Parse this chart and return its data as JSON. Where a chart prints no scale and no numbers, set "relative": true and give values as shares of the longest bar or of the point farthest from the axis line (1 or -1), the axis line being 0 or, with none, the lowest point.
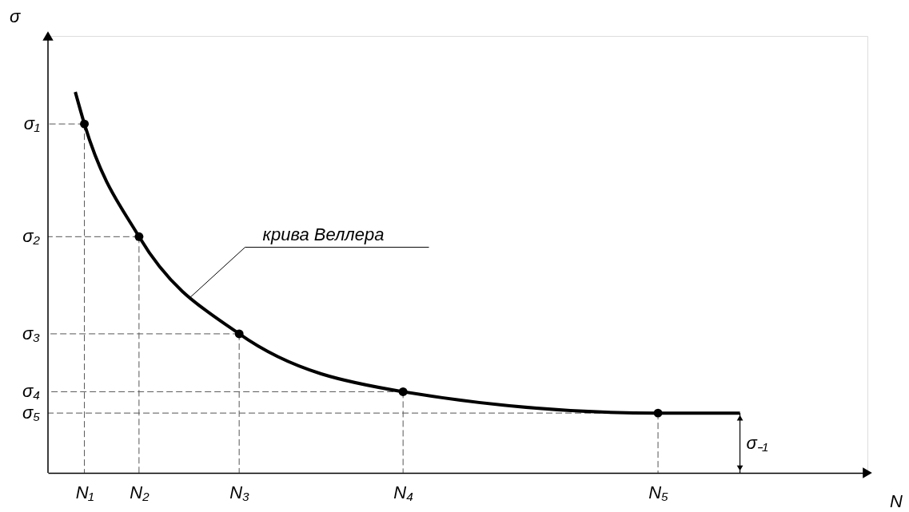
{
  "chart_data": {
    "type": "line",
    "xlabel": "N",
    "ylabel": "σ",
    "relative": true,
    "grid": true,
    "categories": [
      null,
      null,
      null,
      null,
      "N₁",
      null,
      null,
      null,
      null,
      null,
      "N₂",
      null,
      null,
      null,
      null,
      null,
      null,
      null,
      null,
      null,
      null,
      "N₃",
      null,
      null,
      null,
      null,
      null,
      null,
      null,
      null,
      null,
      null,
      null,
      null,
      null,
      null,
      null,
      null,
      null,
      "N₄",
      null,
      null,
      null,
      null,
      null,
      null,
      null,
      null,
      null,
      null,
      null,
      null,
      null,
      null,
      null,
      null,
      null,
      null,
      null,
      null,
      null,
      null,
      null,
      null,
      null,
      null,
      null,
      "N₅",
      null,
      null,
      null,
      null,
      null,
      null,
      null,
      null,
      null,
      null,
      null,
      null,
      null,
      null,
      null,
      null,
      null,
      null,
      null,
      null,
      null,
      null,
      null
    ],
    "series": [
      {
        "values": [
          null,
          null,
          null,
          1,
          0.916,
          null,
          null,
          null,
          null,
          null,
          0.62,
          null,
          null,
          null,
          null,
          null,
          null,
          null,
          null,
          null,
          null,
          0.365,
          null,
          null,
          null,
          null,
          null,
          null,
          null,
          null,
          null,
          null,
          null,
          null,
          null,
          null,
          null,
          null,
          null,
          0.213,
          null,
          null,
          null,
          null,
          null,
          null,
          null,
          null,
          null,
          null,
          null,
          null,
          null,
          null,
          null,
          null,
          null,
          null,
          null,
          null,
          null,
          null,
          null,
          null,
          null,
          null,
          null,
          0.157,
          null,
          null,
          null,
          null,
          null,
          null,
          null,
          null,
          0.157,
          null,
          null,
          null,
          null,
          null,
          null,
          null,
          null,
          null,
          null,
          null,
          null,
          null,
          null
        ],
        "color": "#000000",
        "marker": "none",
        "line_style": "solid"
      },
      {
        "type": "scatter",
        "values": [
          null,
          null,
          null,
          null,
          0.916,
          null,
          null,
          null,
          null,
          null,
          0.62,
          null,
          null,
          null,
          null,
          null,
          null,
          null,
          null,
          null,
          null,
          0.365,
          null,
          null,
          null,
          null,
          null,
          null,
          null,
          null,
          null,
          null,
          null,
          null,
          null,
          null,
          null,
          null,
          null,
          0.213,
          null,
          null,
          null,
          null,
          null,
          null,
          null,
          null,
          null,
          null,
          null,
          null,
          null,
          null,
          null,
          null,
          null,
          null,
          null,
          null,
          null,
          null,
          null,
          null,
          null,
          null,
          null,
          0.157,
          null,
          null,
          null,
          null,
          null,
          null,
          null,
          null,
          null,
          null,
          null,
          null,
          null,
          null,
          null,
          null,
          null,
          null,
          null,
          null,
          null,
          null,
          null
        ],
        "color": "#000000",
        "marker": "circle"
      }
    ],
    "annotations": [
      "σ₁",
      "σ₂",
      "σ₃",
      "σ₄",
      "σ₅",
      "крива Веллера",
      "σ₋₁"
    ]
  }
}
